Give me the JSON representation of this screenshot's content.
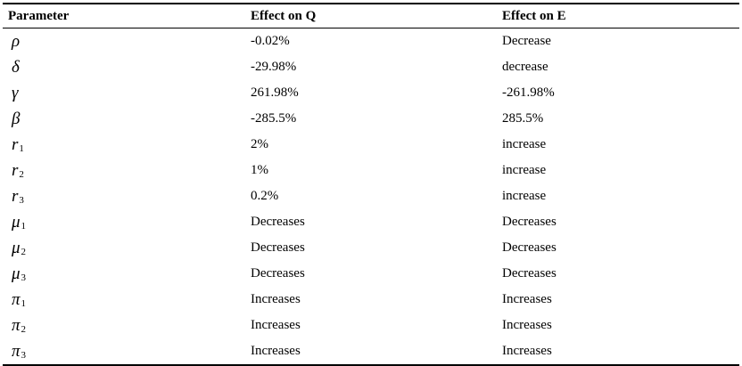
{
  "table": {
    "headers": [
      "Parameter",
      "Effect on Q",
      "Effect on E"
    ],
    "rows": [
      {
        "symbol": "ρ",
        "sub": "",
        "effect_q": "-0.02%",
        "effect_e": "Decrease"
      },
      {
        "symbol": "δ",
        "sub": "",
        "effect_q": "-29.98%",
        "effect_e": "decrease"
      },
      {
        "symbol": "γ",
        "sub": "",
        "effect_q": "261.98%",
        "effect_e": "-261.98%"
      },
      {
        "symbol": "β",
        "sub": "",
        "effect_q": "-285.5%",
        "effect_e": "285.5%"
      },
      {
        "symbol": "r",
        "sub": "1",
        "effect_q": "2%",
        "effect_e": "increase"
      },
      {
        "symbol": "r",
        "sub": "2",
        "effect_q": "1%",
        "effect_e": "increase"
      },
      {
        "symbol": "r",
        "sub": "3",
        "effect_q": "0.2%",
        "effect_e": "increase"
      },
      {
        "symbol": "μ",
        "sub": "1",
        "effect_q": "Decreases",
        "effect_e": "Decreases"
      },
      {
        "symbol": "μ",
        "sub": "2",
        "effect_q": "Decreases",
        "effect_e": "Decreases"
      },
      {
        "symbol": "μ",
        "sub": "3",
        "effect_q": "Decreases",
        "effect_e": "Decreases"
      },
      {
        "symbol": "π",
        "sub": "1",
        "effect_q": "Increases",
        "effect_e": "Increases"
      },
      {
        "symbol": "π",
        "sub": "2",
        "effect_q": "Increases",
        "effect_e": "Increases"
      },
      {
        "symbol": "π",
        "sub": "3",
        "effect_q": "Increases",
        "effect_e": "Increases"
      }
    ]
  }
}
